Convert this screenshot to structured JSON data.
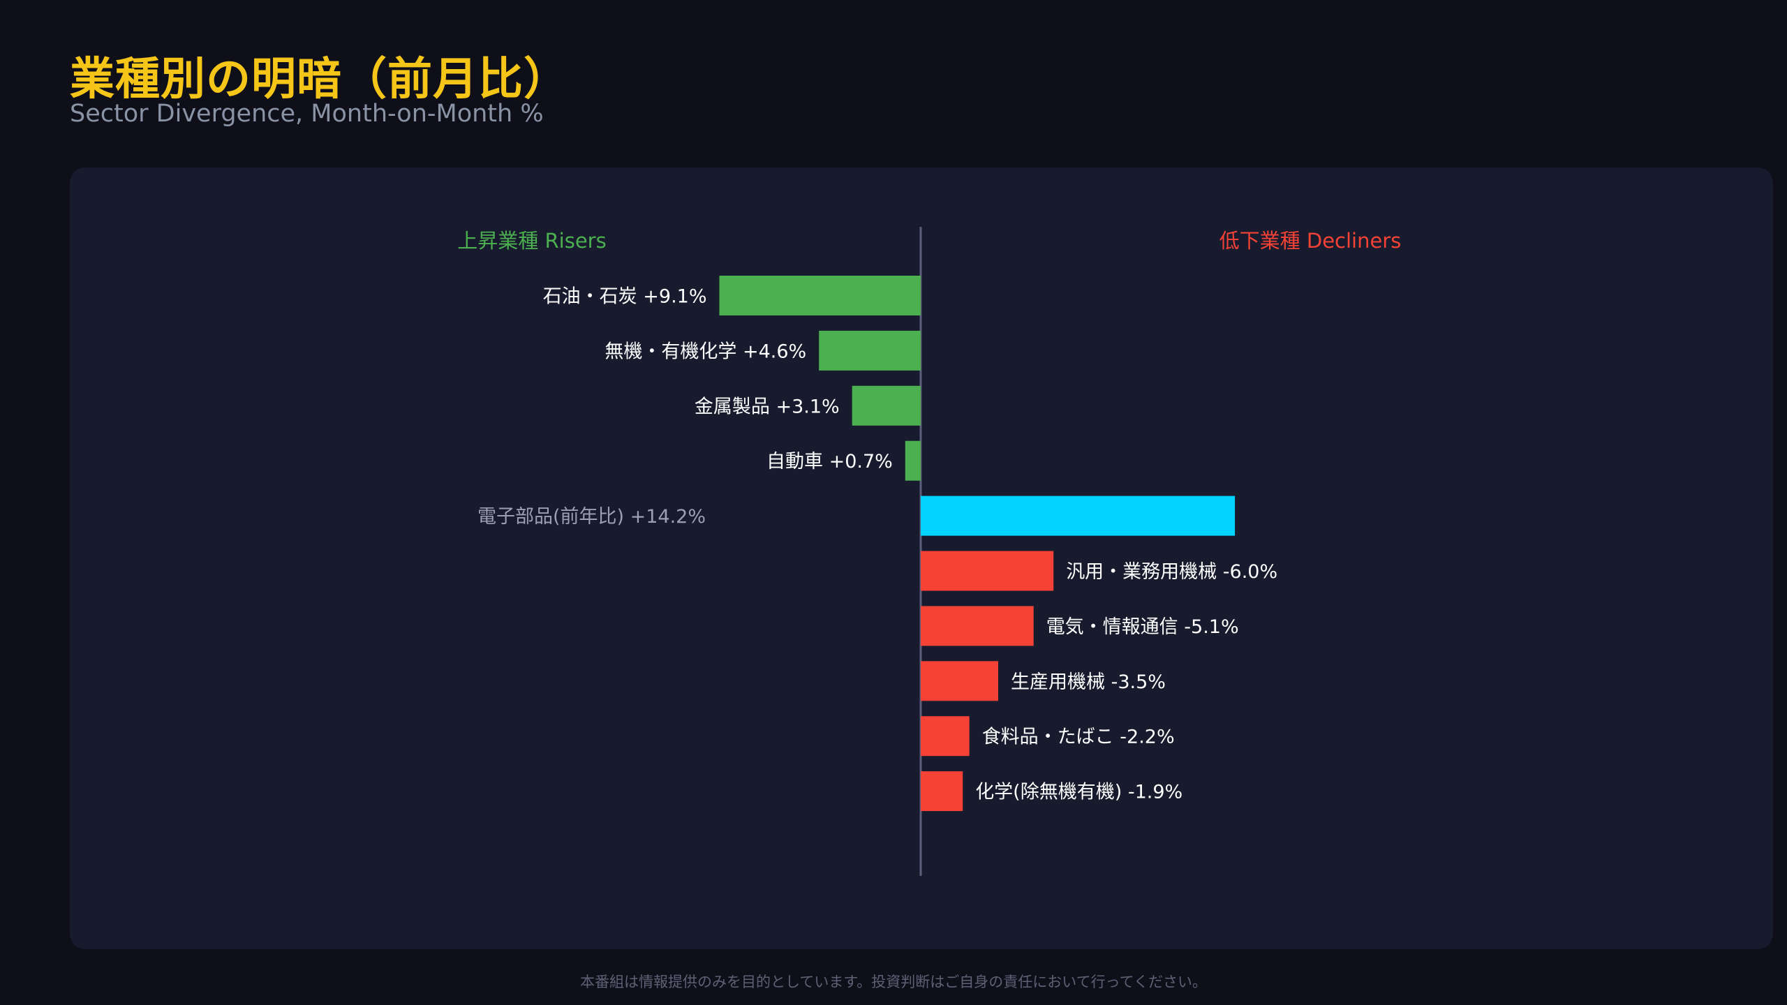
{
  "header": {
    "title": "業種別の明暗（前月比）",
    "subtitle": "Sector Divergence, Month-on-Month %"
  },
  "footer": {
    "disclaimer": "本番組は情報提供のみを目的としています。投資判断はご自身の責任において行ってください。"
  },
  "chart_data": {
    "type": "bar",
    "orientation": "horizontal-diverging",
    "title": "業種別の明暗（前月比）",
    "subtitle": "Sector Divergence, Month-on-Month %",
    "risers_label": "上昇業種 Risers",
    "decliners_label": "低下業種 Decliners",
    "colors": {
      "riser": "#4caf50",
      "decliner": "#f44336",
      "highlight": "#00d4ff",
      "risers_header": "#4caf50",
      "decliners_header": "#f44336",
      "axis": "#5a5f7a",
      "label": "#ffffff",
      "label_muted": "#9aa0b5"
    },
    "bars": [
      {
        "label": "石油・石炭 +9.1%",
        "value": 9.1,
        "group": "riser"
      },
      {
        "label": "無機・有機化学 +4.6%",
        "value": 4.6,
        "group": "riser"
      },
      {
        "label": "金属製品 +3.1%",
        "value": 3.1,
        "group": "riser"
      },
      {
        "label": "自動車 +0.7%",
        "value": 0.7,
        "group": "riser"
      },
      {
        "label": "電子部品(前年比) +14.2%",
        "value": 14.2,
        "group": "highlight"
      },
      {
        "label": "汎用・業務用機械 -6.0%",
        "value": -6.0,
        "group": "decliner"
      },
      {
        "label": "電気・情報通信 -5.1%",
        "value": -5.1,
        "group": "decliner"
      },
      {
        "label": "生産用機械 -3.5%",
        "value": -3.5,
        "group": "decliner"
      },
      {
        "label": "食料品・たばこ -2.2%",
        "value": -2.2,
        "group": "decliner"
      },
      {
        "label": "化学(除無機有機) -1.9%",
        "value": -1.9,
        "group": "decliner"
      }
    ]
  }
}
